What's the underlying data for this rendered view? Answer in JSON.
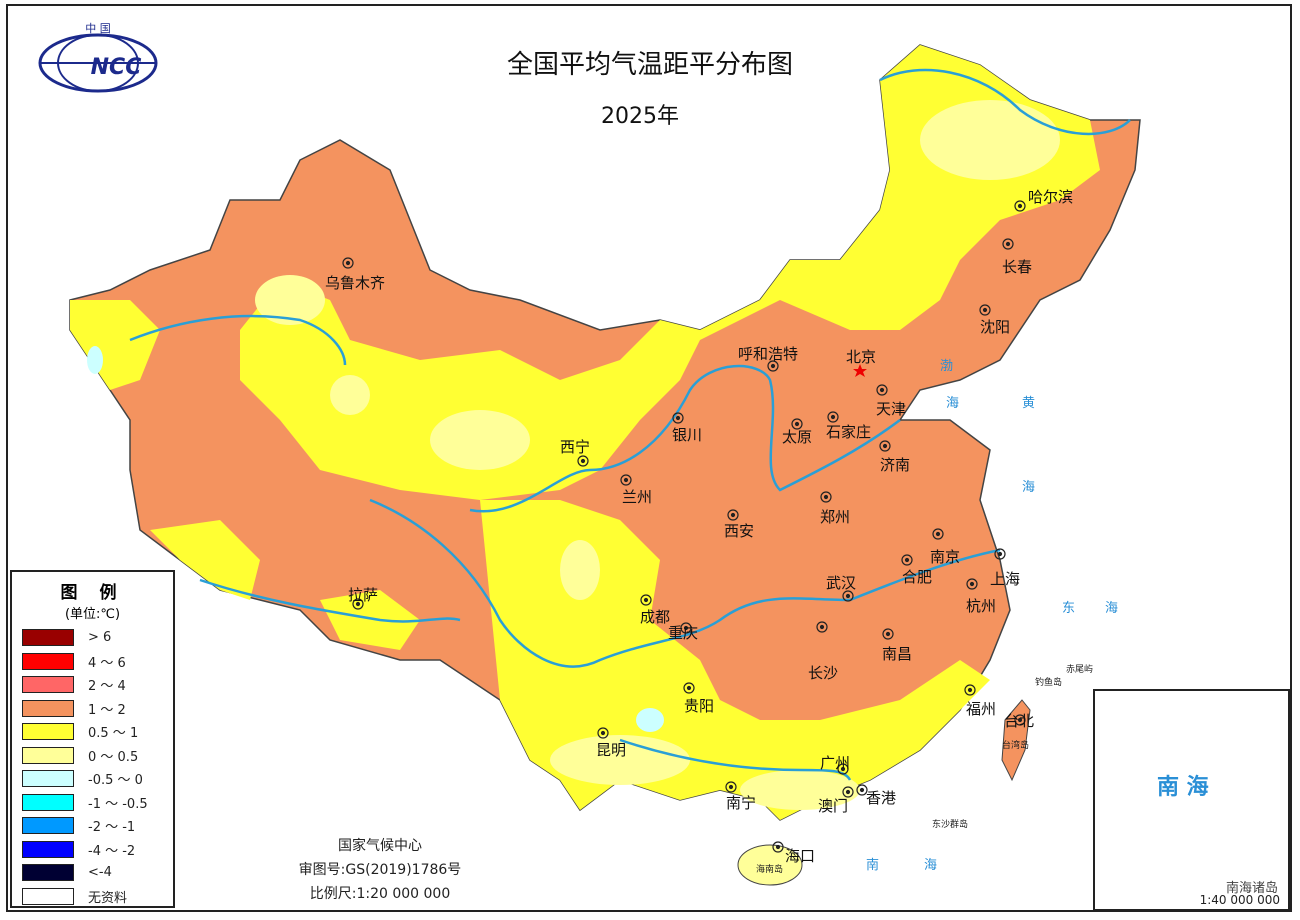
{
  "title": "全国平均气温距平分布图",
  "subtitle": "2025年",
  "logo": {
    "text": "NCC",
    "top_text": "中 国"
  },
  "legend": {
    "title": "图 例",
    "unit": "(单位:℃)",
    "items": [
      {
        "label": "> 6",
        "color": "#990000"
      },
      {
        "label": "4 ～ 6",
        "color": "#ff0000"
      },
      {
        "label": "2 ～ 4",
        "color": "#ff6666"
      },
      {
        "label": "1 ～ 2",
        "color": "#f4935f"
      },
      {
        "label": "0.5 ～ 1",
        "color": "#ffff33"
      },
      {
        "label": "0 ～ 0.5",
        "color": "#ffff99"
      },
      {
        "label": "-0.5 ～ 0",
        "color": "#ccffff"
      },
      {
        "label": "-1 ～ -0.5",
        "color": "#00ffff"
      },
      {
        "label": "-2 ～ -1",
        "color": "#0099ff"
      },
      {
        "label": "-4 ～ -2",
        "color": "#0000ff"
      },
      {
        "label": "<-4",
        "color": "#000033"
      },
      {
        "label": "无资料",
        "color": "#ffffff"
      }
    ]
  },
  "cities": [
    {
      "name": "乌鲁木齐"
    },
    {
      "name": "哈尔滨"
    },
    {
      "name": "长春"
    },
    {
      "name": "沈阳"
    },
    {
      "name": "北京"
    },
    {
      "name": "天津"
    },
    {
      "name": "呼和浩特"
    },
    {
      "name": "石家庄"
    },
    {
      "name": "太原"
    },
    {
      "name": "银川"
    },
    {
      "name": "西宁"
    },
    {
      "name": "兰州"
    },
    {
      "name": "济南"
    },
    {
      "name": "郑州"
    },
    {
      "name": "西安"
    },
    {
      "name": "南京"
    },
    {
      "name": "合肥"
    },
    {
      "name": "上海"
    },
    {
      "name": "杭州"
    },
    {
      "name": "武汉"
    },
    {
      "name": "拉萨"
    },
    {
      "name": "成都"
    },
    {
      "name": "重庆"
    },
    {
      "name": "长沙"
    },
    {
      "name": "南昌"
    },
    {
      "name": "贵阳"
    },
    {
      "name": "福州"
    },
    {
      "name": "台北"
    },
    {
      "name": "昆明"
    },
    {
      "name": "广州"
    },
    {
      "name": "南宁"
    },
    {
      "name": "澳门"
    },
    {
      "name": "香港"
    },
    {
      "name": "海口"
    }
  ],
  "seas": [
    "渤",
    "海",
    "黄",
    "海",
    "东",
    "海",
    "南",
    "海"
  ],
  "islands": [
    "钓鱼岛",
    "赤尾屿",
    "台湾岛",
    "东沙群岛",
    "海南岛"
  ],
  "footer": {
    "org": "国家气候中心",
    "approval": "审图号:GS(2019)1786号",
    "scale": "比例尺:1:20 000 000"
  },
  "inset": {
    "sea": "南 海",
    "label": "南海诸岛",
    "scale": "1:40 000 000"
  },
  "colors": {
    "river": "#2a9fd6",
    "border": "#555555"
  }
}
